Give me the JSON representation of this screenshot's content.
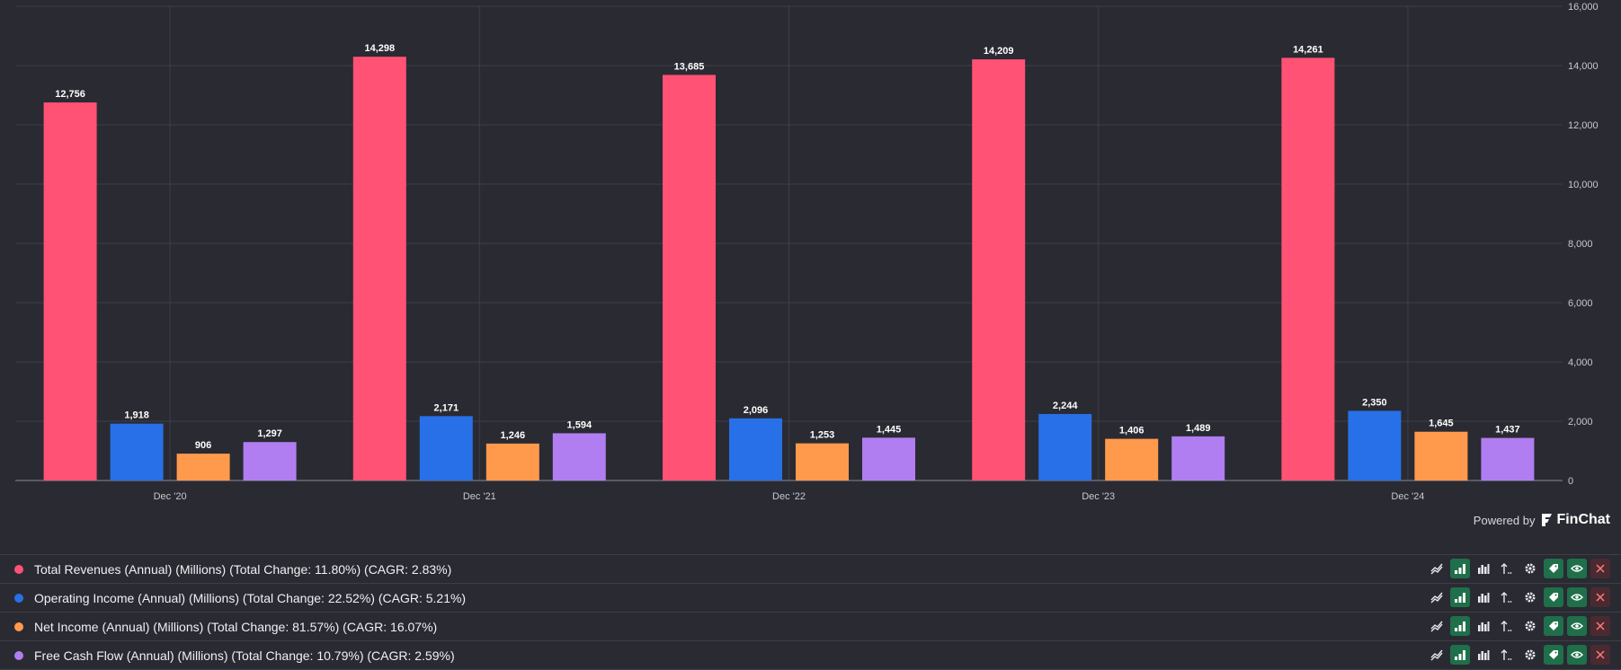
{
  "chart_data": {
    "type": "bar",
    "categories": [
      "Dec '20",
      "Dec '21",
      "Dec '22",
      "Dec '23",
      "Dec '24"
    ],
    "series": [
      {
        "name": "Total Revenues",
        "color": "#ff5274",
        "values": [
          12756,
          14298,
          13685,
          14209,
          14261
        ]
      },
      {
        "name": "Operating Income",
        "color": "#2870e8",
        "values": [
          1918,
          2171,
          2096,
          2244,
          2350
        ]
      },
      {
        "name": "Net Income",
        "color": "#ff9a4d",
        "values": [
          906,
          1246,
          1253,
          1406,
          1645
        ]
      },
      {
        "name": "Free Cash Flow",
        "color": "#b07ef0",
        "values": [
          1297,
          1594,
          1445,
          1489,
          1437
        ]
      }
    ],
    "value_labels": [
      [
        "12,756",
        "14,298",
        "13,685",
        "14,209",
        "14,261"
      ],
      [
        "1,918",
        "2,171",
        "2,096",
        "2,244",
        "2,350"
      ],
      [
        "906",
        "1,246",
        "1,253",
        "1,406",
        "1,645"
      ],
      [
        "1,297",
        "1,594",
        "1,445",
        "1,489",
        "1,437"
      ]
    ],
    "y_ticks": [
      0,
      2000,
      4000,
      6000,
      8000,
      10000,
      12000,
      14000,
      16000
    ],
    "y_tick_labels": [
      "0",
      "2,000",
      "4,000",
      "6,000",
      "8,000",
      "10,000",
      "12,000",
      "14,000",
      "16,000"
    ],
    "ylim": [
      0,
      16000
    ],
    "y_axis_side": "right",
    "grid": true
  },
  "branding": {
    "powered_by": "Powered by",
    "brand": "FinChat"
  },
  "legend": [
    {
      "label": "Total Revenues (Annual) (Millions) (Total Change: 11.80%) (CAGR: 2.83%)",
      "color": "#ff5274"
    },
    {
      "label": "Operating Income (Annual) (Millions) (Total Change: 22.52%) (CAGR: 5.21%)",
      "color": "#2870e8"
    },
    {
      "label": "Net Income (Annual) (Millions) (Total Change: 81.57%) (CAGR: 16.07%)",
      "color": "#ff9a4d"
    },
    {
      "label": "Free Cash Flow (Annual) (Millions) (Total Change: 10.79%) (CAGR: 2.59%)",
      "color": "#b07ef0"
    }
  ],
  "tool_icons": [
    "line-chart-icon",
    "bar-chart-icon",
    "grouped-bar-icon",
    "sort-icon",
    "gear-icon",
    "tag-icon",
    "eye-icon",
    "close-icon"
  ]
}
